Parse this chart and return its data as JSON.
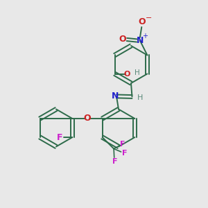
{
  "background_color": "#e8e8e8",
  "bond_color": "#2d6b4a",
  "n_color": "#2222cc",
  "o_color": "#cc2222",
  "f_color": "#cc22cc",
  "h_color": "#5a8a7a",
  "figsize": [
    3.0,
    3.0
  ],
  "dpi": 100,
  "xlim": [
    0,
    10
  ],
  "ylim": [
    0,
    10
  ]
}
